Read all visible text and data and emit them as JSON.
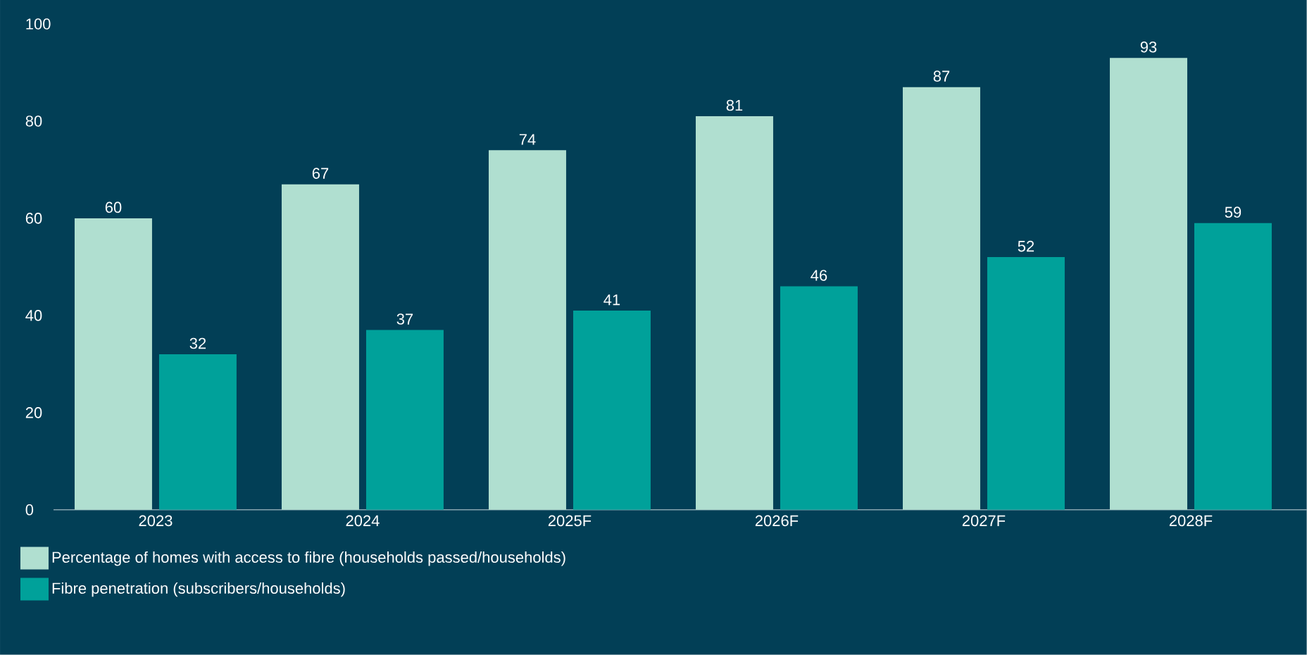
{
  "chart_data": {
    "type": "bar",
    "categories": [
      "2023",
      "2024",
      "2025F",
      "2026F",
      "2027F",
      "2028F"
    ],
    "series": [
      {
        "name": "Percentage of homes with access to fibre (households passed/households)",
        "color": "#b0dfd0",
        "values": [
          60,
          67,
          74,
          81,
          87,
          93
        ]
      },
      {
        "name": "Fibre penetration (subscribers/households)",
        "color": "#00a19a",
        "values": [
          32,
          37,
          41,
          46,
          52,
          59
        ]
      }
    ],
    "ylim": [
      0,
      100
    ],
    "yticks": [
      0,
      20,
      40,
      60,
      80,
      100
    ],
    "data_labels": true,
    "legend": "bottom left"
  }
}
